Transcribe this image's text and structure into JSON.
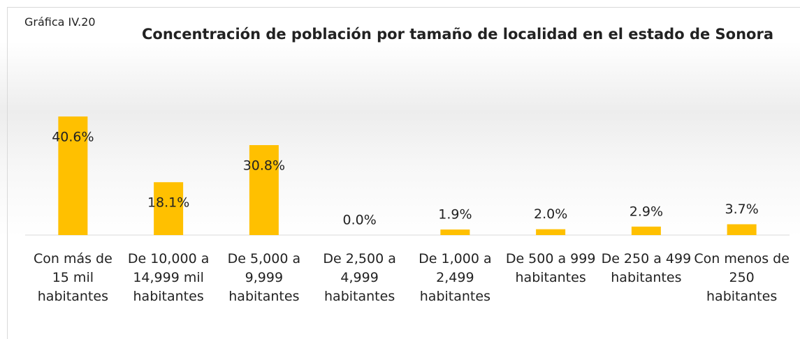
{
  "chart_data": {
    "type": "bar",
    "label": "Gráfica IV.20",
    "title": "Concentración de población por tamaño de localidad en el estado de Sonora",
    "categories": [
      "Con más de 15 mil habitantes",
      "De 10,000 a 14,999 mil habitantes",
      "De 5,000 a 9,999 habitantes",
      "De 2,500 a 4,999 habitantes",
      "De 1,000 a 2,499 habitantes",
      "De 500 a 999 habitantes",
      "De 250 a 499 habitantes",
      "Con menos de 250 habitantes"
    ],
    "values": [
      40.6,
      18.1,
      30.8,
      0.0,
      1.9,
      2.0,
      2.9,
      3.7
    ],
    "value_labels": [
      "40.6%",
      "18.1%",
      "30.8%",
      "0.0%",
      "1.9%",
      "2.0%",
      "2.9%",
      "3.7%"
    ],
    "color": "#ffc000"
  }
}
